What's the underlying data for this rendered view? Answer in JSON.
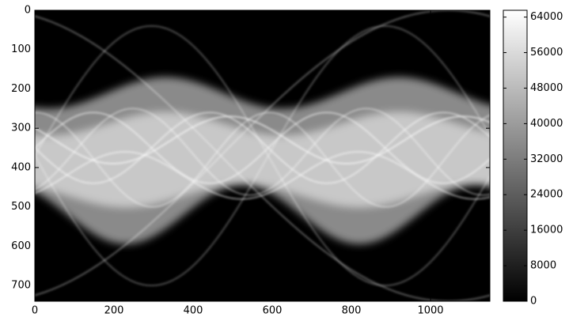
{
  "chart_data": {
    "type": "image",
    "cmap": "gray",
    "xlim": [
      0,
      1150
    ],
    "ylim": [
      740,
      0
    ],
    "xticks": [
      0,
      200,
      400,
      600,
      800,
      1000
    ],
    "yticks": [
      0,
      100,
      200,
      300,
      400,
      500,
      600,
      700
    ],
    "colorbar": {
      "clim": [
        0,
        65535
      ],
      "ticks": [
        0,
        8000,
        16000,
        24000,
        32000,
        40000,
        48000,
        56000,
        64000
      ]
    }
  }
}
